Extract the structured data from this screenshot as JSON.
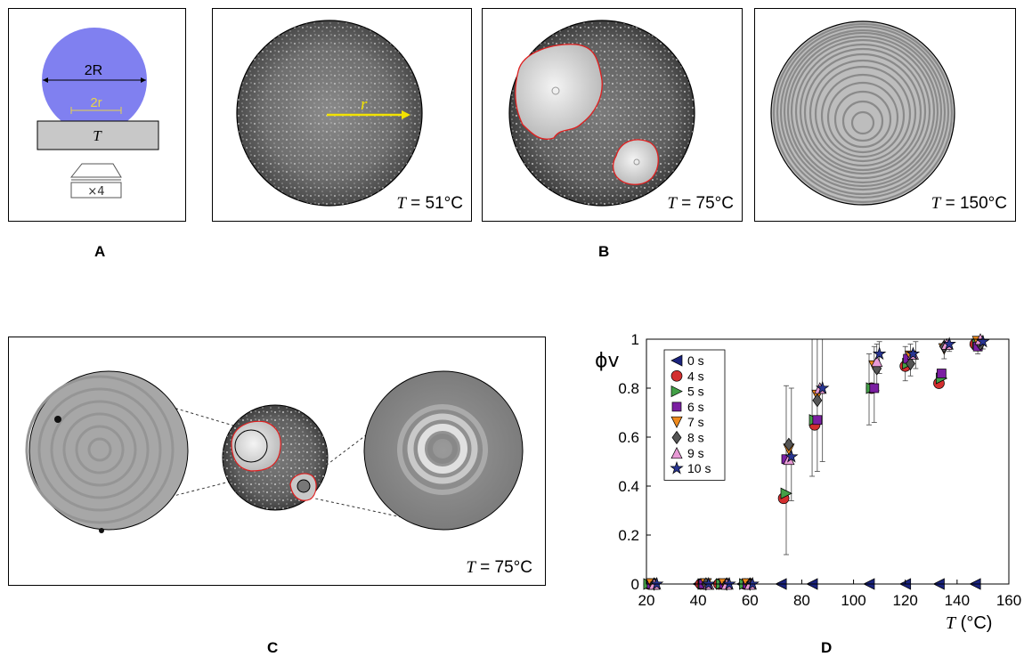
{
  "panel_labels": {
    "a": "A",
    "b": "B",
    "c": "C",
    "d": "D"
  },
  "schematic": {
    "big_diameter": "2R",
    "contact_diameter": "2r",
    "substrate_label": "T",
    "objective_label": "×4",
    "colors": {
      "droplet": "#8080f0",
      "contact": "#e8d34a",
      "substrate": "#c8c8c8"
    }
  },
  "micrographs": [
    {
      "var": "T",
      "eq": " = ",
      "value": "51°C",
      "radius_label": "r",
      "arrow_color": "#f2e200"
    },
    {
      "var": "T",
      "eq": " = ",
      "value": "75°C",
      "outline_color": "#e02020"
    },
    {
      "var": "T",
      "eq": " = ",
      "value": "150°C"
    }
  ],
  "zoom_panel": {
    "var": "T",
    "eq": " = ",
    "value": "75°C"
  },
  "chart_data": {
    "type": "scatter",
    "ylabel": "ϕv",
    "xlabel_var": "T",
    "xlabel_unit": " (°C)",
    "xlim": [
      20,
      160
    ],
    "ylim": [
      0,
      1
    ],
    "xticks": [
      "20",
      "40",
      "60",
      "80",
      "100",
      "120",
      "140",
      "160"
    ],
    "yticks": [
      "0",
      "0.2",
      "0.4",
      "0.6",
      "0.8",
      "1"
    ],
    "legend_position": "top-left",
    "series": [
      {
        "name": "0 s",
        "marker": "tri-left",
        "color": "#1a237e",
        "points": [
          [
            22,
            0
          ],
          [
            40,
            0
          ],
          [
            48,
            0
          ],
          [
            57,
            0
          ],
          [
            72,
            0
          ],
          [
            84,
            0
          ],
          [
            106,
            0
          ],
          [
            120,
            0
          ],
          [
            133,
            0
          ],
          [
            147,
            0
          ]
        ]
      },
      {
        "name": "4 s",
        "marker": "circle",
        "color": "#d32f2f",
        "points": [
          [
            21,
            0
          ],
          [
            41,
            0
          ],
          [
            48,
            0
          ],
          [
            58,
            0
          ],
          [
            73,
            0.35
          ],
          [
            85,
            0.65
          ],
          [
            107,
            0.8
          ],
          [
            120,
            0.89
          ],
          [
            133,
            0.82
          ],
          [
            147,
            0.98
          ]
        ]
      },
      {
        "name": "5 s",
        "marker": "tri-right",
        "color": "#43a047",
        "points": [
          [
            21,
            0
          ],
          [
            42,
            0
          ],
          [
            49,
            0
          ],
          [
            58,
            0
          ],
          [
            74,
            0.37
          ],
          [
            85,
            0.67
          ],
          [
            107,
            0.8
          ],
          [
            121,
            0.9
          ],
          [
            134,
            0.84
          ],
          [
            148,
            0.98
          ]
        ]
      },
      {
        "name": "6 s",
        "marker": "square",
        "color": "#7b1fa2",
        "points": [
          [
            22,
            0
          ],
          [
            42,
            0
          ],
          [
            50,
            0
          ],
          [
            59,
            0
          ],
          [
            74,
            0.51
          ],
          [
            86,
            0.67
          ],
          [
            108,
            0.8
          ],
          [
            121,
            0.92
          ],
          [
            134,
            0.86
          ],
          [
            148,
            0.97
          ]
        ]
      },
      {
        "name": "7 s",
        "marker": "tri-down",
        "color": "#ef8a1c",
        "points": [
          [
            22,
            0
          ],
          [
            43,
            0
          ],
          [
            50,
            0
          ],
          [
            59,
            0
          ],
          [
            75,
            0.55
          ],
          [
            86,
            0.77
          ],
          [
            108,
            0.89
          ],
          [
            122,
            0.93
          ],
          [
            135,
            0.96
          ],
          [
            148,
            0.99
          ]
        ]
      },
      {
        "name": "8 s",
        "marker": "diamond",
        "color": "#555555",
        "points": [
          [
            23,
            0
          ],
          [
            43,
            0
          ],
          [
            51,
            0
          ],
          [
            60,
            0
          ],
          [
            75,
            0.57
          ],
          [
            86,
            0.75
          ],
          [
            109,
            0.88
          ],
          [
            122,
            0.9
          ],
          [
            135,
            0.97
          ],
          [
            149,
            0.98
          ]
        ]
      },
      {
        "name": "9 s",
        "marker": "tri-up",
        "color": "#e89ad6",
        "points": [
          [
            23,
            0
          ],
          [
            44,
            0
          ],
          [
            51,
            0
          ],
          [
            60,
            0
          ],
          [
            75,
            0.51
          ],
          [
            87,
            0.8
          ],
          [
            109,
            0.91
          ],
          [
            123,
            0.94
          ],
          [
            136,
            0.98
          ],
          [
            149,
            1.0
          ]
        ]
      },
      {
        "name": "10 s",
        "marker": "star",
        "color": "#283593",
        "points": [
          [
            24,
            0
          ],
          [
            44,
            0
          ],
          [
            52,
            0
          ],
          [
            61,
            0
          ],
          [
            76,
            0.52
          ],
          [
            88,
            0.8
          ],
          [
            110,
            0.94
          ],
          [
            123,
            0.94
          ],
          [
            137,
            0.98
          ],
          [
            150,
            0.99
          ]
        ]
      }
    ],
    "error_bars": [
      [
        74,
        0.12,
        0.81
      ],
      [
        76,
        0.34,
        0.8
      ],
      [
        84,
        0.44,
        1.0
      ],
      [
        86,
        0.46,
        1.0
      ],
      [
        88,
        0.5,
        1.0
      ],
      [
        106,
        0.65,
        0.94
      ],
      [
        108,
        0.66,
        0.97
      ],
      [
        109,
        0.79,
        0.98
      ],
      [
        110,
        0.86,
        0.99
      ],
      [
        120,
        0.83,
        0.97
      ],
      [
        122,
        0.85,
        0.98
      ],
      [
        124,
        0.88,
        0.99
      ],
      [
        135,
        0.92,
        1.0
      ],
      [
        137,
        0.95,
        1.0
      ],
      [
        148,
        0.94,
        1.0
      ],
      [
        150,
        0.96,
        1.0
      ]
    ]
  }
}
